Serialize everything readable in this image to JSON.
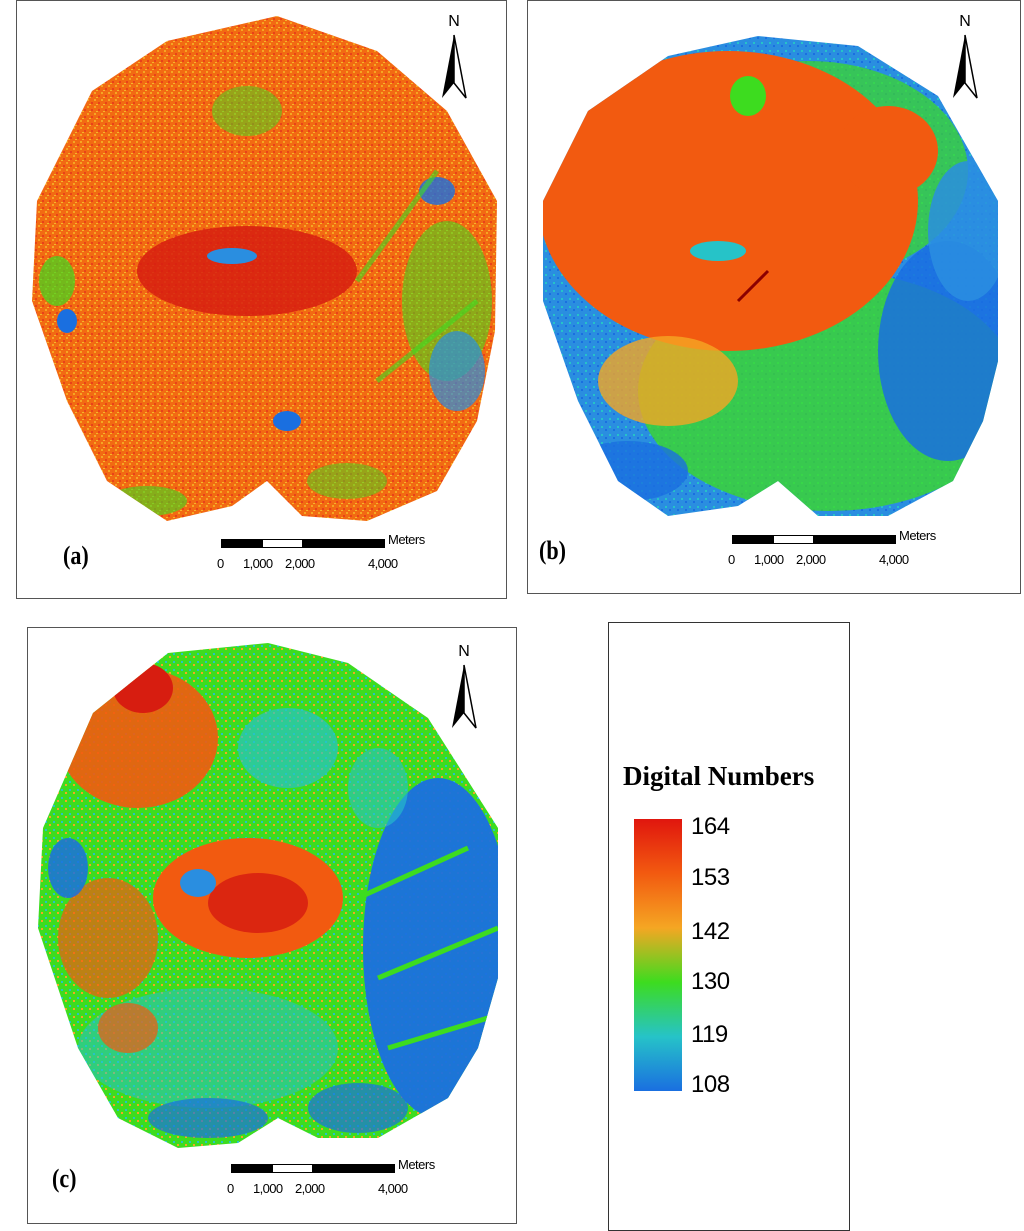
{
  "figure": {
    "panels": [
      {
        "id": "a",
        "label": "(a)"
      },
      {
        "id": "b",
        "label": "(b)"
      },
      {
        "id": "c",
        "label": "(c)"
      }
    ],
    "north_arrow_letter": "N",
    "scale_bar": {
      "unit": "Meters",
      "ticks": [
        "0",
        "1,000",
        "2,000",
        "4,000"
      ]
    },
    "legend": {
      "title": "Digital Numbers",
      "values": [
        "164",
        "153",
        "142",
        "130",
        "119",
        "108"
      ],
      "colors": [
        "#e0160e",
        "#f25a10",
        "#f5a623",
        "#3ddc1f",
        "#26c3c8",
        "#1a6fe0"
      ]
    }
  }
}
